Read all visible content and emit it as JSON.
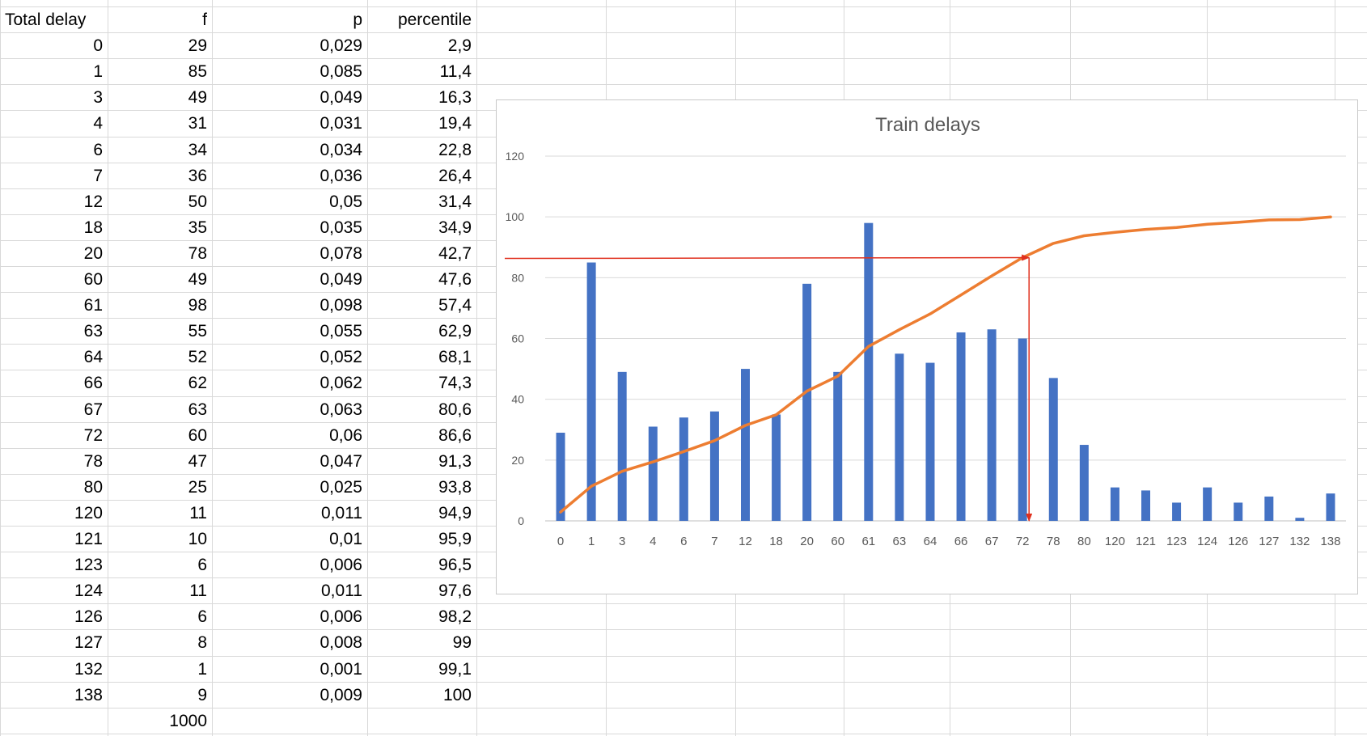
{
  "sheet": {
    "headers": [
      "Total delay",
      "f",
      "p",
      "percentile"
    ],
    "rows": [
      [
        "0",
        "29",
        "0,029",
        "2,9"
      ],
      [
        "1",
        "85",
        "0,085",
        "11,4"
      ],
      [
        "3",
        "49",
        "0,049",
        "16,3"
      ],
      [
        "4",
        "31",
        "0,031",
        "19,4"
      ],
      [
        "6",
        "34",
        "0,034",
        "22,8"
      ],
      [
        "7",
        "36",
        "0,036",
        "26,4"
      ],
      [
        "12",
        "50",
        "0,05",
        "31,4"
      ],
      [
        "18",
        "35",
        "0,035",
        "34,9"
      ],
      [
        "20",
        "78",
        "0,078",
        "42,7"
      ],
      [
        "60",
        "49",
        "0,049",
        "47,6"
      ],
      [
        "61",
        "98",
        "0,098",
        "57,4"
      ],
      [
        "63",
        "55",
        "0,055",
        "62,9"
      ],
      [
        "64",
        "52",
        "0,052",
        "68,1"
      ],
      [
        "66",
        "62",
        "0,062",
        "74,3"
      ],
      [
        "67",
        "63",
        "0,063",
        "80,6"
      ],
      [
        "72",
        "60",
        "0,06",
        "86,6"
      ],
      [
        "78",
        "47",
        "0,047",
        "91,3"
      ],
      [
        "80",
        "25",
        "0,025",
        "93,8"
      ],
      [
        "120",
        "11",
        "0,011",
        "94,9"
      ],
      [
        "121",
        "10",
        "0,01",
        "95,9"
      ],
      [
        "123",
        "6",
        "0,006",
        "96,5"
      ],
      [
        "124",
        "11",
        "0,011",
        "97,6"
      ],
      [
        "126",
        "6",
        "0,006",
        "98,2"
      ],
      [
        "127",
        "8",
        "0,008",
        "99"
      ],
      [
        "132",
        "1",
        "0,001",
        "99,1"
      ],
      [
        "138",
        "9",
        "0,009",
        "100"
      ]
    ],
    "total": "1000"
  },
  "chart_data": {
    "type": "bar",
    "title": "Train delays",
    "categories": [
      "0",
      "1",
      "3",
      "4",
      "6",
      "7",
      "12",
      "18",
      "20",
      "60",
      "61",
      "63",
      "64",
      "66",
      "67",
      "72",
      "78",
      "80",
      "120",
      "121",
      "123",
      "124",
      "126",
      "127",
      "132",
      "138"
    ],
    "series": [
      {
        "type": "bar",
        "values": [
          29,
          85,
          49,
          31,
          34,
          36,
          50,
          35,
          78,
          49,
          98,
          55,
          52,
          62,
          63,
          60,
          47,
          25,
          11,
          10,
          6,
          11,
          6,
          8,
          1,
          9
        ]
      },
      {
        "type": "line",
        "values": [
          2.9,
          11.4,
          16.3,
          19.4,
          22.8,
          26.4,
          31.4,
          34.9,
          42.7,
          47.6,
          57.4,
          62.9,
          68.1,
          74.3,
          80.6,
          86.6,
          91.3,
          93.8,
          94.9,
          95.9,
          96.5,
          97.6,
          98.2,
          99,
          99.1,
          100
        ]
      }
    ],
    "ylim": [
      0,
      120
    ],
    "yticks": [
      "0",
      "20",
      "40",
      "60",
      "80",
      "100",
      "120"
    ],
    "grid": true,
    "annotation": {
      "type": "arrow",
      "y": 86.6,
      "x_category": "72"
    },
    "colors": {
      "bars": "#4472C4",
      "line": "#ED7D31",
      "arrow": "#E0301E"
    }
  }
}
